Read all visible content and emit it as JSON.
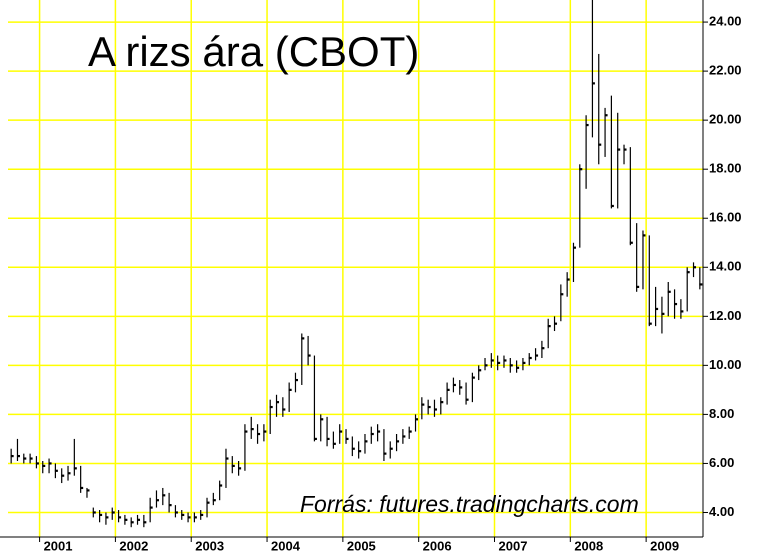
{
  "chart_data": {
    "type": "ohlc",
    "title": "A rizs ára (CBOT)",
    "annotation": "Forrás: futures.tradingcharts.com",
    "color": "#000000",
    "grid_color": "#ffff00",
    "grid": true,
    "xlim": [
      -0.5,
      109.5
    ],
    "xticks": [
      {
        "value": 4.5,
        "label": "2001"
      },
      {
        "value": 16.5,
        "label": "2002"
      },
      {
        "value": 28.5,
        "label": "2003"
      },
      {
        "value": 40.5,
        "label": "2004"
      },
      {
        "value": 52.5,
        "label": "2005"
      },
      {
        "value": 64.5,
        "label": "2006"
      },
      {
        "value": 76.5,
        "label": "2007"
      },
      {
        "value": 88.5,
        "label": "2008"
      },
      {
        "value": 100.5,
        "label": "2009"
      }
    ],
    "ylim": [
      3.0,
      24.9
    ],
    "yticks": [
      {
        "value": 4,
        "label": "4.00"
      },
      {
        "value": 6,
        "label": "6.00"
      },
      {
        "value": 8,
        "label": "8.00"
      },
      {
        "value": 10,
        "label": "10.00"
      },
      {
        "value": 12,
        "label": "12.00"
      },
      {
        "value": 14,
        "label": "14.00"
      },
      {
        "value": 16,
        "label": "16.00"
      },
      {
        "value": 18,
        "label": "18.00"
      },
      {
        "value": 20,
        "label": "20.00"
      },
      {
        "value": 22,
        "label": "22.00"
      },
      {
        "value": 24,
        "label": "24.00"
      }
    ],
    "high": [
      6.6,
      7.0,
      6.4,
      6.4,
      6.3,
      6.1,
      6.2,
      6.0,
      5.8,
      5.9,
      7.0,
      5.9,
      5.0,
      4.2,
      4.1,
      4.0,
      4.2,
      4.1,
      3.9,
      3.8,
      3.9,
      3.9,
      4.6,
      4.9,
      5.0,
      4.8,
      4.3,
      4.1,
      4.0,
      4.0,
      4.1,
      4.6,
      4.8,
      5.3,
      6.6,
      6.3,
      6.1,
      7.6,
      7.9,
      7.6,
      7.6,
      8.6,
      8.8,
      8.7,
      9.3,
      9.7,
      11.3,
      11.2,
      10.4,
      8.0,
      7.9,
      7.3,
      7.6,
      7.4,
      7.1,
      6.9,
      7.2,
      7.5,
      7.6,
      7.4,
      6.9,
      7.2,
      7.4,
      7.5,
      8.0,
      8.7,
      8.6,
      8.6,
      8.7,
      9.3,
      9.5,
      9.4,
      9.3,
      9.7,
      10.0,
      10.3,
      10.5,
      10.4,
      10.4,
      10.3,
      10.2,
      10.3,
      10.5,
      10.7,
      11.0,
      11.9,
      12.0,
      13.3,
      13.8,
      15.0,
      18.2,
      20.2,
      24.9,
      22.7,
      20.5,
      21.0,
      20.3,
      19.0,
      18.9,
      15.8,
      15.5,
      15.3,
      13.2,
      12.8,
      13.4,
      13.1,
      12.7,
      14.0,
      14.2,
      14.0
    ],
    "low": [
      6.0,
      6.1,
      6.0,
      6.0,
      5.8,
      5.6,
      5.6,
      5.4,
      5.2,
      5.3,
      5.5,
      4.8,
      4.6,
      3.8,
      3.6,
      3.5,
      3.7,
      3.6,
      3.5,
      3.4,
      3.5,
      3.4,
      3.6,
      4.2,
      4.3,
      4.0,
      3.8,
      3.7,
      3.6,
      3.6,
      3.7,
      3.8,
      4.3,
      4.5,
      5.0,
      5.6,
      5.5,
      5.7,
      7.0,
      6.8,
      6.9,
      7.2,
      7.9,
      7.9,
      8.1,
      8.9,
      9.2,
      10.0,
      6.9,
      6.9,
      6.7,
      6.6,
      6.8,
      6.8,
      6.3,
      6.2,
      6.4,
      6.8,
      6.9,
      6.1,
      6.2,
      6.5,
      6.8,
      7.0,
      7.3,
      7.8,
      8.0,
      7.9,
      8.0,
      8.4,
      8.9,
      8.8,
      8.4,
      8.5,
      9.4,
      9.8,
      9.9,
      9.8,
      9.9,
      9.7,
      9.7,
      9.8,
      10.0,
      10.2,
      10.3,
      10.7,
      11.4,
      11.8,
      12.8,
      13.4,
      14.8,
      17.2,
      19.3,
      18.2,
      18.5,
      16.4,
      16.4,
      18.2,
      14.9,
      13.0,
      13.1,
      11.6,
      11.6,
      11.3,
      12.0,
      11.9,
      11.9,
      12.2,
      13.6,
      13.1
    ],
    "close": [
      6.3,
      6.3,
      6.2,
      6.2,
      6.0,
      5.9,
      6.0,
      5.7,
      5.5,
      5.6,
      5.8,
      5.0,
      4.9,
      4.0,
      3.9,
      3.8,
      4.0,
      3.8,
      3.7,
      3.6,
      3.7,
      3.6,
      4.2,
      4.5,
      4.7,
      4.3,
      4.0,
      3.9,
      3.8,
      3.8,
      3.9,
      4.4,
      4.5,
      5.1,
      6.2,
      5.9,
      5.8,
      7.3,
      7.4,
      7.2,
      7.3,
      8.3,
      8.5,
      8.2,
      9.0,
      9.4,
      11.1,
      10.4,
      7.0,
      7.8,
      7.0,
      6.8,
      7.3,
      7.0,
      6.6,
      6.5,
      6.9,
      7.2,
      7.3,
      6.4,
      6.6,
      6.9,
      7.1,
      7.3,
      7.8,
      8.4,
      8.3,
      8.2,
      8.5,
      9.0,
      9.2,
      9.1,
      8.6,
      9.5,
      9.8,
      10.0,
      10.2,
      10.1,
      10.2,
      10.0,
      9.9,
      10.1,
      10.3,
      10.4,
      10.7,
      11.6,
      11.7,
      12.9,
      13.5,
      14.8,
      18.0,
      19.8,
      21.5,
      19.0,
      20.2,
      16.5,
      18.8,
      18.8,
      15.0,
      13.2,
      15.3,
      11.7,
      12.3,
      12.1,
      13.0,
      12.5,
      12.2,
      13.8,
      14.0,
      13.3
    ]
  }
}
